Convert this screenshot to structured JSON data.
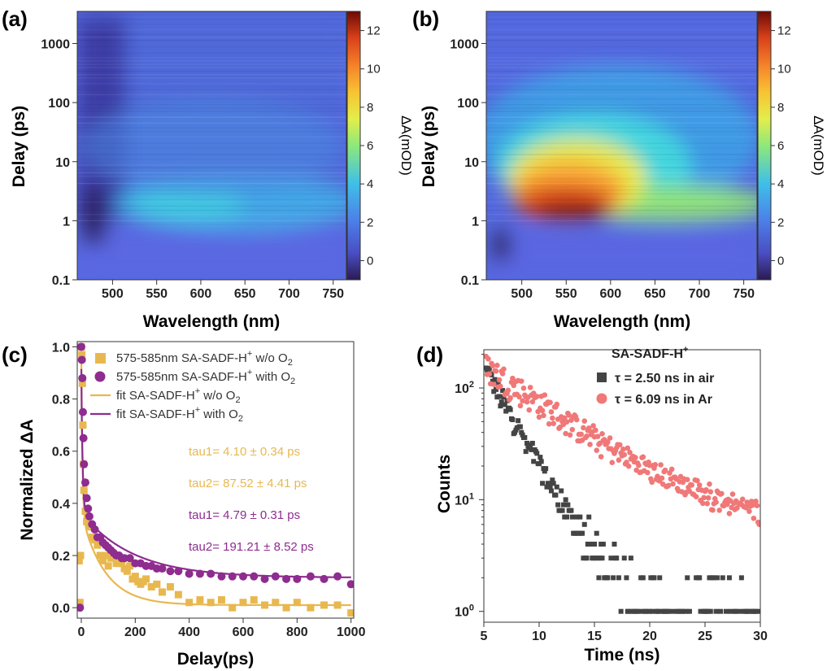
{
  "colors": {
    "series_a": "#e8b84f",
    "series_b": "#8e2c8f",
    "air": "#444444",
    "argon": "#f07878"
  },
  "chart_data": [
    {
      "type": "heatmap",
      "panel_label": "(a)",
      "xlabel": "Wavelength (nm)",
      "ylabel": "Delay (ps)",
      "colorbar_label": "ΔA(mOD)",
      "xlim": [
        460,
        765
      ],
      "ylim": [
        0.1,
        3500
      ],
      "yscale": "log",
      "xticks": [
        "500",
        "550",
        "600",
        "650",
        "700",
        "750"
      ],
      "yticks": [
        "0.1",
        "1",
        "10",
        "100",
        "1000"
      ],
      "colorbar_range": [
        -1,
        13
      ],
      "colorbar_ticks": [
        "0",
        "2",
        "4",
        "6",
        "8",
        "10",
        "12"
      ],
      "features": [
        {
          "wavelength": 475,
          "delay": 0.7,
          "value": -0.8
        },
        {
          "wavelength": 490,
          "delay": 5,
          "value": -0.5
        },
        {
          "wavelength": 580,
          "delay": 2,
          "value": 4.5
        }
      ]
    },
    {
      "type": "heatmap",
      "panel_label": "(b)",
      "xlabel": "Wavelength (nm)",
      "ylabel": "Delay (ps)",
      "colorbar_label": "ΔA(mOD)",
      "xlim": [
        460,
        765
      ],
      "ylim": [
        0.1,
        3500
      ],
      "yscale": "log",
      "xticks": [
        "500",
        "550",
        "600",
        "650",
        "700",
        "750"
      ],
      "yticks": [
        "0.1",
        "1",
        "10",
        "100",
        "1000"
      ],
      "colorbar_range": [
        -1,
        13
      ],
      "colorbar_ticks": [
        "0",
        "2",
        "4",
        "6",
        "8",
        "10",
        "12"
      ],
      "features": [
        {
          "wavelength": 565,
          "delay": 1.3,
          "value": 13
        },
        {
          "wavelength": 555,
          "delay": 5,
          "value": 10
        },
        {
          "wavelength": 580,
          "delay": 20,
          "value": 7
        },
        {
          "wavelength": 475,
          "delay": 0.4,
          "value": -0.8
        }
      ]
    },
    {
      "type": "scatter",
      "panel_label": "(c)",
      "xlabel": "Delay(ps)",
      "ylabel": "Normalized ΔA",
      "xlim": [
        -15,
        1010
      ],
      "ylim": [
        -0.04,
        1.02
      ],
      "xticks": [
        "0",
        "200",
        "400",
        "600",
        "800",
        "1000"
      ],
      "yticks": [
        "0.0",
        "0.2",
        "0.4",
        "0.6",
        "0.8",
        "1.0"
      ],
      "legend": [
        {
          "marker": "square",
          "prefix": "575-585nm SA-SADF-H",
          "sup": "+",
          "suffix": " w/o O",
          "sub": "2"
        },
        {
          "marker": "circle",
          "prefix": "575-585nm SA-SADF-H",
          "sup": "+",
          "suffix": " with O",
          "sub": "2"
        },
        {
          "marker": "line-a",
          "prefix": "fit SA-SADF-H",
          "sup": "+",
          "suffix": " w/o O",
          "sub": "2"
        },
        {
          "marker": "line-b",
          "prefix": "fit SA-SADF-H",
          "sup": "+",
          "suffix": " with O",
          "sub": "2"
        }
      ],
      "annotations": [
        "tau1= 4.10 ± 0.34 ps",
        "tau2= 87.52 ± 4.41 ps",
        "tau1= 4.79 ± 0.31 ps",
        "tau2= 191.21 ± 8.52 ps"
      ],
      "series": [
        {
          "marker": "square",
          "x": [
            -8,
            -5,
            -3,
            0,
            2,
            4,
            6,
            8,
            10,
            15,
            20,
            30,
            40,
            50,
            60,
            70,
            80,
            90,
            100,
            110,
            120,
            130,
            140,
            150,
            160,
            170,
            180,
            190,
            200,
            210,
            220,
            230,
            240,
            260,
            280,
            300,
            330,
            360,
            400,
            440,
            480,
            520,
            560,
            600,
            640,
            680,
            720,
            760,
            800,
            850,
            900,
            950,
            1000
          ],
          "y": [
            0.18,
            0.02,
            0.2,
            1.0,
            0.97,
            0.86,
            0.7,
            0.55,
            0.45,
            0.37,
            0.33,
            0.31,
            0.27,
            0.26,
            0.24,
            0.2,
            0.18,
            0.2,
            0.16,
            0.19,
            0.2,
            0.17,
            0.17,
            0.17,
            0.15,
            0.14,
            0.16,
            0.11,
            0.12,
            0.1,
            0.09,
            0.1,
            0.11,
            0.08,
            0.09,
            0.06,
            0.08,
            0.05,
            0.02,
            0.03,
            0.02,
            0.03,
            0.0,
            0.02,
            0.03,
            0.01,
            0.02,
            0.0,
            0.02,
            0.0,
            0.01,
            0.01,
            -0.02
          ]
        },
        {
          "marker": "circle",
          "x": [
            -5,
            0,
            2,
            4,
            6,
            8,
            10,
            15,
            20,
            25,
            30,
            40,
            50,
            60,
            70,
            80,
            90,
            100,
            110,
            120,
            130,
            140,
            150,
            160,
            180,
            200,
            220,
            240,
            260,
            280,
            300,
            330,
            360,
            400,
            440,
            480,
            520,
            560,
            600,
            640,
            680,
            720,
            760,
            800,
            850,
            900,
            950,
            1000
          ],
          "y": [
            0.0,
            1.0,
            0.95,
            0.88,
            0.75,
            0.65,
            0.55,
            0.48,
            0.42,
            0.38,
            0.35,
            0.32,
            0.3,
            0.27,
            0.27,
            0.25,
            0.24,
            0.23,
            0.22,
            0.21,
            0.2,
            0.2,
            0.19,
            0.19,
            0.19,
            0.17,
            0.17,
            0.16,
            0.16,
            0.15,
            0.15,
            0.14,
            0.14,
            0.13,
            0.13,
            0.13,
            0.12,
            0.12,
            0.12,
            0.12,
            0.11,
            0.12,
            0.11,
            0.11,
            0.12,
            0.11,
            0.12,
            0.09
          ]
        }
      ],
      "fits": [
        {
          "marker": "line-a",
          "a1": 0.6,
          "tau1": 4.1,
          "a2": 0.35,
          "tau2": 87.52,
          "offset": 0.01
        },
        {
          "marker": "line-b",
          "a1": 0.55,
          "tau1": 4.79,
          "a2": 0.25,
          "tau2": 191.21,
          "offset": 0.115
        }
      ]
    },
    {
      "type": "scatter",
      "panel_label": "(d)",
      "xlabel": "Time (ns)",
      "ylabel": "Counts",
      "yscale": "log",
      "xlim": [
        5,
        30
      ],
      "ylim": [
        0.8,
        220
      ],
      "xticks": [
        "5",
        "10",
        "15",
        "20",
        "25",
        "30"
      ],
      "yticks": [
        {
          "base": "10",
          "exp": "0"
        },
        {
          "base": "10",
          "exp": "1"
        },
        {
          "base": "10",
          "exp": "2"
        }
      ],
      "legend_title": {
        "text": "SA-SADF-H",
        "sup": "+"
      },
      "legend": [
        {
          "marker": "square",
          "text": "τ = 2.50 ns in air"
        },
        {
          "marker": "circle",
          "text": "τ = 6.09 ns in Ar"
        }
      ],
      "series": [
        {
          "marker": "square",
          "tau_ns": 2.5,
          "t0": 5.2,
          "amplitude": 140,
          "t_end": 30,
          "step": 0.1,
          "min_count": 1
        },
        {
          "marker": "circle",
          "tau_ns": 6.09,
          "t0": 5.2,
          "amplitude": 150,
          "t_end": 30,
          "step": 0.1,
          "min_count": 4
        }
      ]
    }
  ]
}
